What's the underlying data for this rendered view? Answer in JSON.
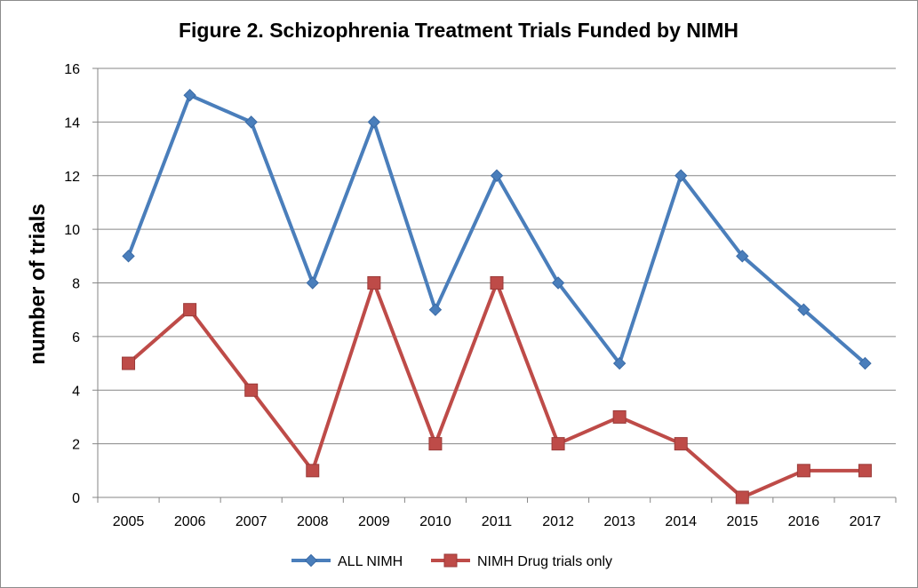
{
  "chart_data": {
    "type": "line",
    "title": "Figure 2. Schizophrenia Treatment Trials Funded by NIMH",
    "xlabel": "",
    "ylabel": "number of trials",
    "x": [
      "2005",
      "2006",
      "2007",
      "2008",
      "2009",
      "2010",
      "2011",
      "2012",
      "2013",
      "2014",
      "2015",
      "2016",
      "2017"
    ],
    "ylim": [
      0,
      16
    ],
    "yticks": [
      "0",
      "2",
      "4",
      "6",
      "8",
      "10",
      "12",
      "14",
      "16"
    ],
    "grid": true,
    "legend_position": "bottom",
    "series": [
      {
        "name": "ALL NIMH",
        "color": "#4a7ebb",
        "marker": "diamond",
        "values": [
          9,
          15,
          14,
          8,
          14,
          7,
          12,
          8,
          5,
          12,
          9,
          7,
          5
        ]
      },
      {
        "name": "NIMH Drug trials only",
        "color": "#be4b48",
        "marker": "square",
        "values": [
          5,
          7,
          4,
          1,
          8,
          2,
          8,
          2,
          3,
          2,
          0,
          1,
          1
        ]
      }
    ]
  }
}
